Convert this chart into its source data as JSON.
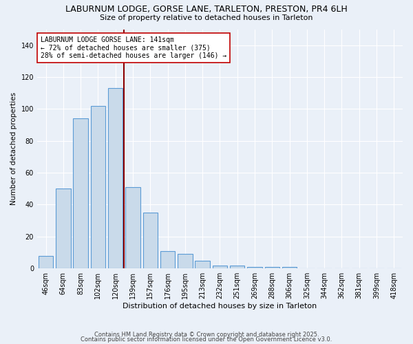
{
  "title": "LABURNUM LODGE, GORSE LANE, TARLETON, PRESTON, PR4 6LH",
  "subtitle": "Size of property relative to detached houses in Tarleton",
  "xlabel": "Distribution of detached houses by size in Tarleton",
  "ylabel": "Number of detached properties",
  "categories": [
    "46sqm",
    "64sqm",
    "83sqm",
    "102sqm",
    "120sqm",
    "139sqm",
    "157sqm",
    "176sqm",
    "195sqm",
    "213sqm",
    "232sqm",
    "251sqm",
    "269sqm",
    "288sqm",
    "306sqm",
    "325sqm",
    "344sqm",
    "362sqm",
    "381sqm",
    "399sqm",
    "418sqm"
  ],
  "values": [
    8,
    50,
    94,
    102,
    113,
    51,
    35,
    11,
    9,
    5,
    2,
    2,
    1,
    1,
    1,
    0,
    0,
    0,
    0,
    0,
    0
  ],
  "bar_color": "#c9daea",
  "bar_edge_color": "#5b9bd5",
  "vline_index": 5,
  "vline_color": "#8b0000",
  "annotation_text": "LABURNUM LODGE GORSE LANE: 141sqm\n← 72% of detached houses are smaller (375)\n28% of semi-detached houses are larger (146) →",
  "annotation_box_color": "#ffffff",
  "annotation_box_edge": "#c00000",
  "ylim": [
    0,
    150
  ],
  "yticks": [
    0,
    20,
    40,
    60,
    80,
    100,
    120,
    140
  ],
  "footer1": "Contains HM Land Registry data © Crown copyright and database right 2025.",
  "footer2": "Contains public sector information licensed under the Open Government Licence v3.0.",
  "bg_color": "#eaf0f8",
  "plot_bg_color": "#eaf0f8",
  "title_fontsize": 9,
  "subtitle_fontsize": 8,
  "xlabel_fontsize": 8,
  "ylabel_fontsize": 7.5,
  "tick_fontsize": 7,
  "annotation_fontsize": 7,
  "footer_fontsize": 6
}
